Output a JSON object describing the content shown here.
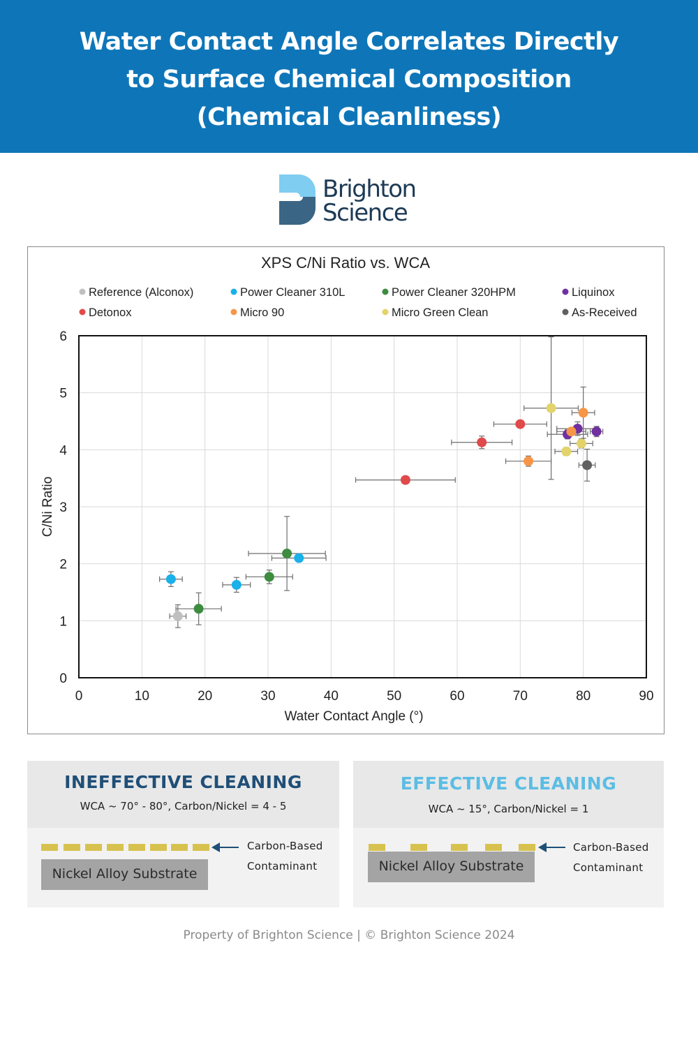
{
  "header": {
    "title_lines": [
      "Water Contact Angle Correlates Directly",
      "to Surface Chemical Composition",
      "(Chemical Cleanliness)"
    ]
  },
  "logo": {
    "line1": "Brighton",
    "line2": "Science"
  },
  "chart_data": {
    "type": "scatter",
    "title": "XPS C/Ni Ratio vs. WCA",
    "xlabel": "Water Contact Angle (°)",
    "ylabel": "C/Ni Ratio",
    "xlim": [
      0,
      90
    ],
    "ylim": [
      0,
      6
    ],
    "x_ticks": [
      0,
      10,
      20,
      30,
      40,
      50,
      60,
      70,
      80,
      90
    ],
    "y_ticks": [
      0,
      1,
      2,
      3,
      4,
      5,
      6
    ],
    "grid": true,
    "legend_position": "top",
    "series": [
      {
        "name": "Reference (Alconox)",
        "color": "#c0c0c0",
        "points": [
          {
            "x": 15.7,
            "y": 1.08,
            "xerr": 1.3,
            "yerr": 0.2
          }
        ]
      },
      {
        "name": "Power Cleaner 310L",
        "color": "#1ab0ea",
        "points": [
          {
            "x": 14.6,
            "y": 1.73,
            "xerr": 1.8,
            "yerr": 0.13
          },
          {
            "x": 25.0,
            "y": 1.63,
            "xerr": 2.2,
            "yerr": 0.13
          },
          {
            "x": 34.9,
            "y": 2.1,
            "xerr": 4.3,
            "yerr": 0.05
          }
        ]
      },
      {
        "name": "Power Cleaner 320HPM",
        "color": "#3d8c40",
        "points": [
          {
            "x": 19.0,
            "y": 1.21,
            "xerr": 3.6,
            "yerr": 0.28
          },
          {
            "x": 30.2,
            "y": 1.77,
            "xerr": 3.7,
            "yerr": 0.12
          },
          {
            "x": 33.0,
            "y": 2.18,
            "xerr": 6.1,
            "yerr": 0.65
          }
        ]
      },
      {
        "name": "Liquinox",
        "color": "#7030a0",
        "points": [
          {
            "x": 77.5,
            "y": 4.27,
            "xerr": 3.2,
            "yerr": 0.08
          },
          {
            "x": 79.1,
            "y": 4.37,
            "xerr": 3.3,
            "yerr": 0.12
          },
          {
            "x": 82.1,
            "y": 4.32,
            "xerr": 1.0,
            "yerr": 0.09
          }
        ]
      },
      {
        "name": "Detonox",
        "color": "#e04a4a",
        "points": [
          {
            "x": 51.8,
            "y": 3.47,
            "xerr": 7.9,
            "yerr": 0.05
          },
          {
            "x": 63.9,
            "y": 4.13,
            "xerr": 4.8,
            "yerr": 0.11
          },
          {
            "x": 70.0,
            "y": 4.45,
            "xerr": 4.2,
            "yerr": 0.06
          }
        ]
      },
      {
        "name": "Micro 90",
        "color": "#f79646",
        "points": [
          {
            "x": 71.3,
            "y": 3.8,
            "xerr": 3.6,
            "yerr": 0.09
          },
          {
            "x": 78.1,
            "y": 4.32,
            "xerr": 2.3,
            "yerr": 0.06
          },
          {
            "x": 80.0,
            "y": 4.65,
            "xerr": 1.8,
            "yerr": 0.45
          }
        ]
      },
      {
        "name": "Micro Green Clean",
        "color": "#e3d36b",
        "points": [
          {
            "x": 74.9,
            "y": 4.73,
            "xerr": 4.3,
            "yerr": 1.25
          },
          {
            "x": 77.3,
            "y": 3.97,
            "xerr": 1.8,
            "yerr": 0.07
          },
          {
            "x": 79.7,
            "y": 4.11,
            "xerr": 1.8,
            "yerr": 0.08
          }
        ]
      },
      {
        "name": "As-Received",
        "color": "#606060",
        "points": [
          {
            "x": 80.6,
            "y": 3.73,
            "xerr": 1.3,
            "yerr": 0.28
          }
        ]
      }
    ]
  },
  "panels": {
    "ineffective": {
      "title": "INEFFECTIVE CLEANING",
      "subtitle": "WCA ~ 70° - 80°, Carbon/Nickel = 4 - 5",
      "substrate": "Nickel Alloy Substrate",
      "contaminant_line1": "Carbon-Based",
      "contaminant_line2": "Contaminant",
      "title_color": "#1f4f77"
    },
    "effective": {
      "title": "EFFECTIVE CLEANING",
      "subtitle": "WCA ~ 15°, Carbon/Nickel = 1",
      "substrate": "Nickel Alloy Substrate",
      "contaminant_line1": "Carbon-Based",
      "contaminant_line2": "Contaminant",
      "title_color": "#5bbde4"
    }
  },
  "footer": {
    "text": "Property of Brighton Science  |  © Brighton Science 2024"
  }
}
